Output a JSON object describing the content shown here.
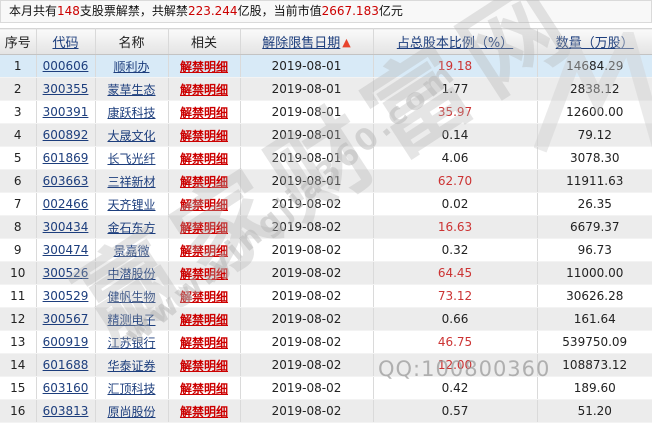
{
  "summary": {
    "segments": [
      {
        "text": "本月共有",
        "red": false
      },
      {
        "text": "148",
        "red": true
      },
      {
        "text": "支股票解禁，共解禁",
        "red": false
      },
      {
        "text": "223.244",
        "red": true
      },
      {
        "text": "亿股，当前市值",
        "red": false
      },
      {
        "text": "2667.183",
        "red": true
      },
      {
        "text": "亿元",
        "red": false
      }
    ]
  },
  "table": {
    "sort_arrow_glyph": "▲",
    "detail_link_label": "解禁明细",
    "headers": [
      {
        "label": "序号",
        "link": false
      },
      {
        "label": "代码",
        "link": true
      },
      {
        "label": "名称",
        "link": false
      },
      {
        "label": "相关",
        "link": false
      },
      {
        "label": "解除限售日期",
        "link": true,
        "sorted": "ascending"
      },
      {
        "label": "占总股本比例（%）",
        "link": true
      },
      {
        "label": "数量（万股）",
        "link": true
      }
    ],
    "rows": [
      {
        "index": "1",
        "code": "000606",
        "name": "顺利办",
        "date": "2019-08-01",
        "ratio": "19.18",
        "ratio_red": true,
        "qty": "14684.29",
        "highlight": true
      },
      {
        "index": "2",
        "code": "300355",
        "name": "蒙草生态",
        "date": "2019-08-01",
        "ratio": "1.77",
        "ratio_red": false,
        "qty": "2838.12",
        "highlight": false
      },
      {
        "index": "3",
        "code": "300391",
        "name": "康跃科技",
        "date": "2019-08-01",
        "ratio": "35.97",
        "ratio_red": true,
        "qty": "12600.00",
        "highlight": false
      },
      {
        "index": "4",
        "code": "600892",
        "name": "大晟文化",
        "date": "2019-08-01",
        "ratio": "0.14",
        "ratio_red": false,
        "qty": "79.12",
        "highlight": false
      },
      {
        "index": "5",
        "code": "601869",
        "name": "长飞光纤",
        "date": "2019-08-01",
        "ratio": "4.06",
        "ratio_red": false,
        "qty": "3078.30",
        "highlight": false
      },
      {
        "index": "6",
        "code": "603663",
        "name": "三祥新材",
        "date": "2019-08-01",
        "ratio": "62.70",
        "ratio_red": true,
        "qty": "11911.63",
        "highlight": false
      },
      {
        "index": "7",
        "code": "002466",
        "name": "天齐锂业",
        "date": "2019-08-02",
        "ratio": "0.02",
        "ratio_red": false,
        "qty": "26.35",
        "highlight": false
      },
      {
        "index": "8",
        "code": "300434",
        "name": "金石东方",
        "date": "2019-08-02",
        "ratio": "16.63",
        "ratio_red": true,
        "qty": "6679.37",
        "highlight": false
      },
      {
        "index": "9",
        "code": "300474",
        "name": "景嘉微",
        "date": "2019-08-02",
        "ratio": "0.32",
        "ratio_red": false,
        "qty": "96.73",
        "highlight": false
      },
      {
        "index": "10",
        "code": "300526",
        "name": "中潜股份",
        "date": "2019-08-02",
        "ratio": "64.45",
        "ratio_red": true,
        "qty": "11000.00",
        "highlight": false
      },
      {
        "index": "11",
        "code": "300529",
        "name": "健帆生物",
        "date": "2019-08-02",
        "ratio": "73.12",
        "ratio_red": true,
        "qty": "30626.28",
        "highlight": false
      },
      {
        "index": "12",
        "code": "300567",
        "name": "精测电子",
        "date": "2019-08-02",
        "ratio": "0.66",
        "ratio_red": false,
        "qty": "161.64",
        "highlight": false
      },
      {
        "index": "13",
        "code": "600919",
        "name": "江苏银行",
        "date": "2019-08-02",
        "ratio": "46.75",
        "ratio_red": true,
        "qty": "539750.09",
        "highlight": false
      },
      {
        "index": "14",
        "code": "601688",
        "name": "华泰证券",
        "date": "2019-08-02",
        "ratio": "12.00",
        "ratio_red": true,
        "qty": "108873.12",
        "highlight": false
      },
      {
        "index": "15",
        "code": "603160",
        "name": "汇顶科技",
        "date": "2019-08-02",
        "ratio": "0.42",
        "ratio_red": false,
        "qty": "189.60",
        "highlight": false
      },
      {
        "index": "16",
        "code": "603813",
        "name": "原尚股份",
        "date": "2019-08-02",
        "ratio": "0.57",
        "ratio_red": false,
        "qty": "51.20",
        "highlight": false
      }
    ]
  },
  "watermarks": {
    "site_name": "赢家财富网",
    "site_url": "www.yingjia360.com",
    "qq": "QQ:100800360"
  },
  "colors": {
    "accent_red": "#cc0000",
    "value_red": "#cc3333",
    "link_navy": "#1d3e7d",
    "row_alt": "#ececec",
    "row_highlight": "#d8eaf7",
    "sort_arrow": "#e8432c"
  }
}
